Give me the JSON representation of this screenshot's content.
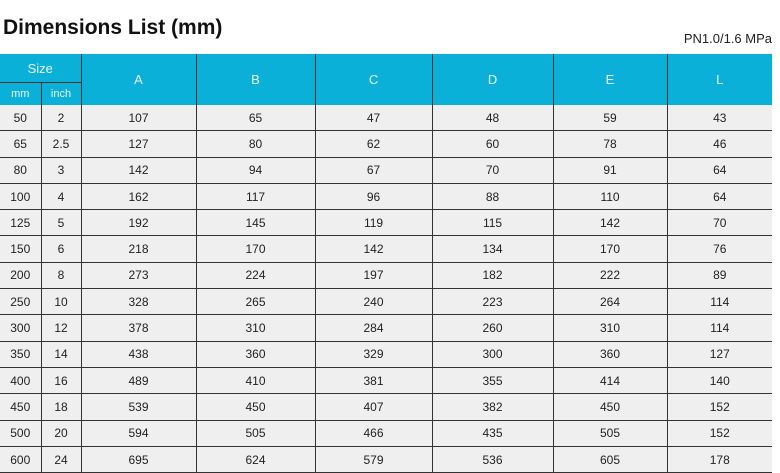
{
  "title": "Dimensions List (mm)",
  "pressure": "PN1.0/1.6 MPa",
  "colors": {
    "header": "#0bb0d8",
    "row": "#efefef"
  },
  "header": {
    "size": "Size",
    "mm": "mm",
    "inch": "inch",
    "cols": [
      "A",
      "B",
      "C",
      "D",
      "E",
      "L"
    ]
  },
  "rows": [
    [
      "50",
      "2",
      "107",
      "65",
      "47",
      "48",
      "59",
      "43"
    ],
    [
      "65",
      "2.5",
      "127",
      "80",
      "62",
      "60",
      "78",
      "46"
    ],
    [
      "80",
      "3",
      "142",
      "94",
      "67",
      "70",
      "91",
      "64"
    ],
    [
      "100",
      "4",
      "162",
      "117",
      "96",
      "88",
      "110",
      "64"
    ],
    [
      "125",
      "5",
      "192",
      "145",
      "119",
      "115",
      "142",
      "70"
    ],
    [
      "150",
      "6",
      "218",
      "170",
      "142",
      "134",
      "170",
      "76"
    ],
    [
      "200",
      "8",
      "273",
      "224",
      "197",
      "182",
      "222",
      "89"
    ],
    [
      "250",
      "10",
      "328",
      "265",
      "240",
      "223",
      "264",
      "114"
    ],
    [
      "300",
      "12",
      "378",
      "310",
      "284",
      "260",
      "310",
      "114"
    ],
    [
      "350",
      "14",
      "438",
      "360",
      "329",
      "300",
      "360",
      "127"
    ],
    [
      "400",
      "16",
      "489",
      "410",
      "381",
      "355",
      "414",
      "140"
    ],
    [
      "450",
      "18",
      "539",
      "450",
      "407",
      "382",
      "450",
      "152"
    ],
    [
      "500",
      "20",
      "594",
      "505",
      "466",
      "435",
      "505",
      "152"
    ],
    [
      "600",
      "24",
      "695",
      "624",
      "579",
      "536",
      "605",
      "178"
    ]
  ]
}
